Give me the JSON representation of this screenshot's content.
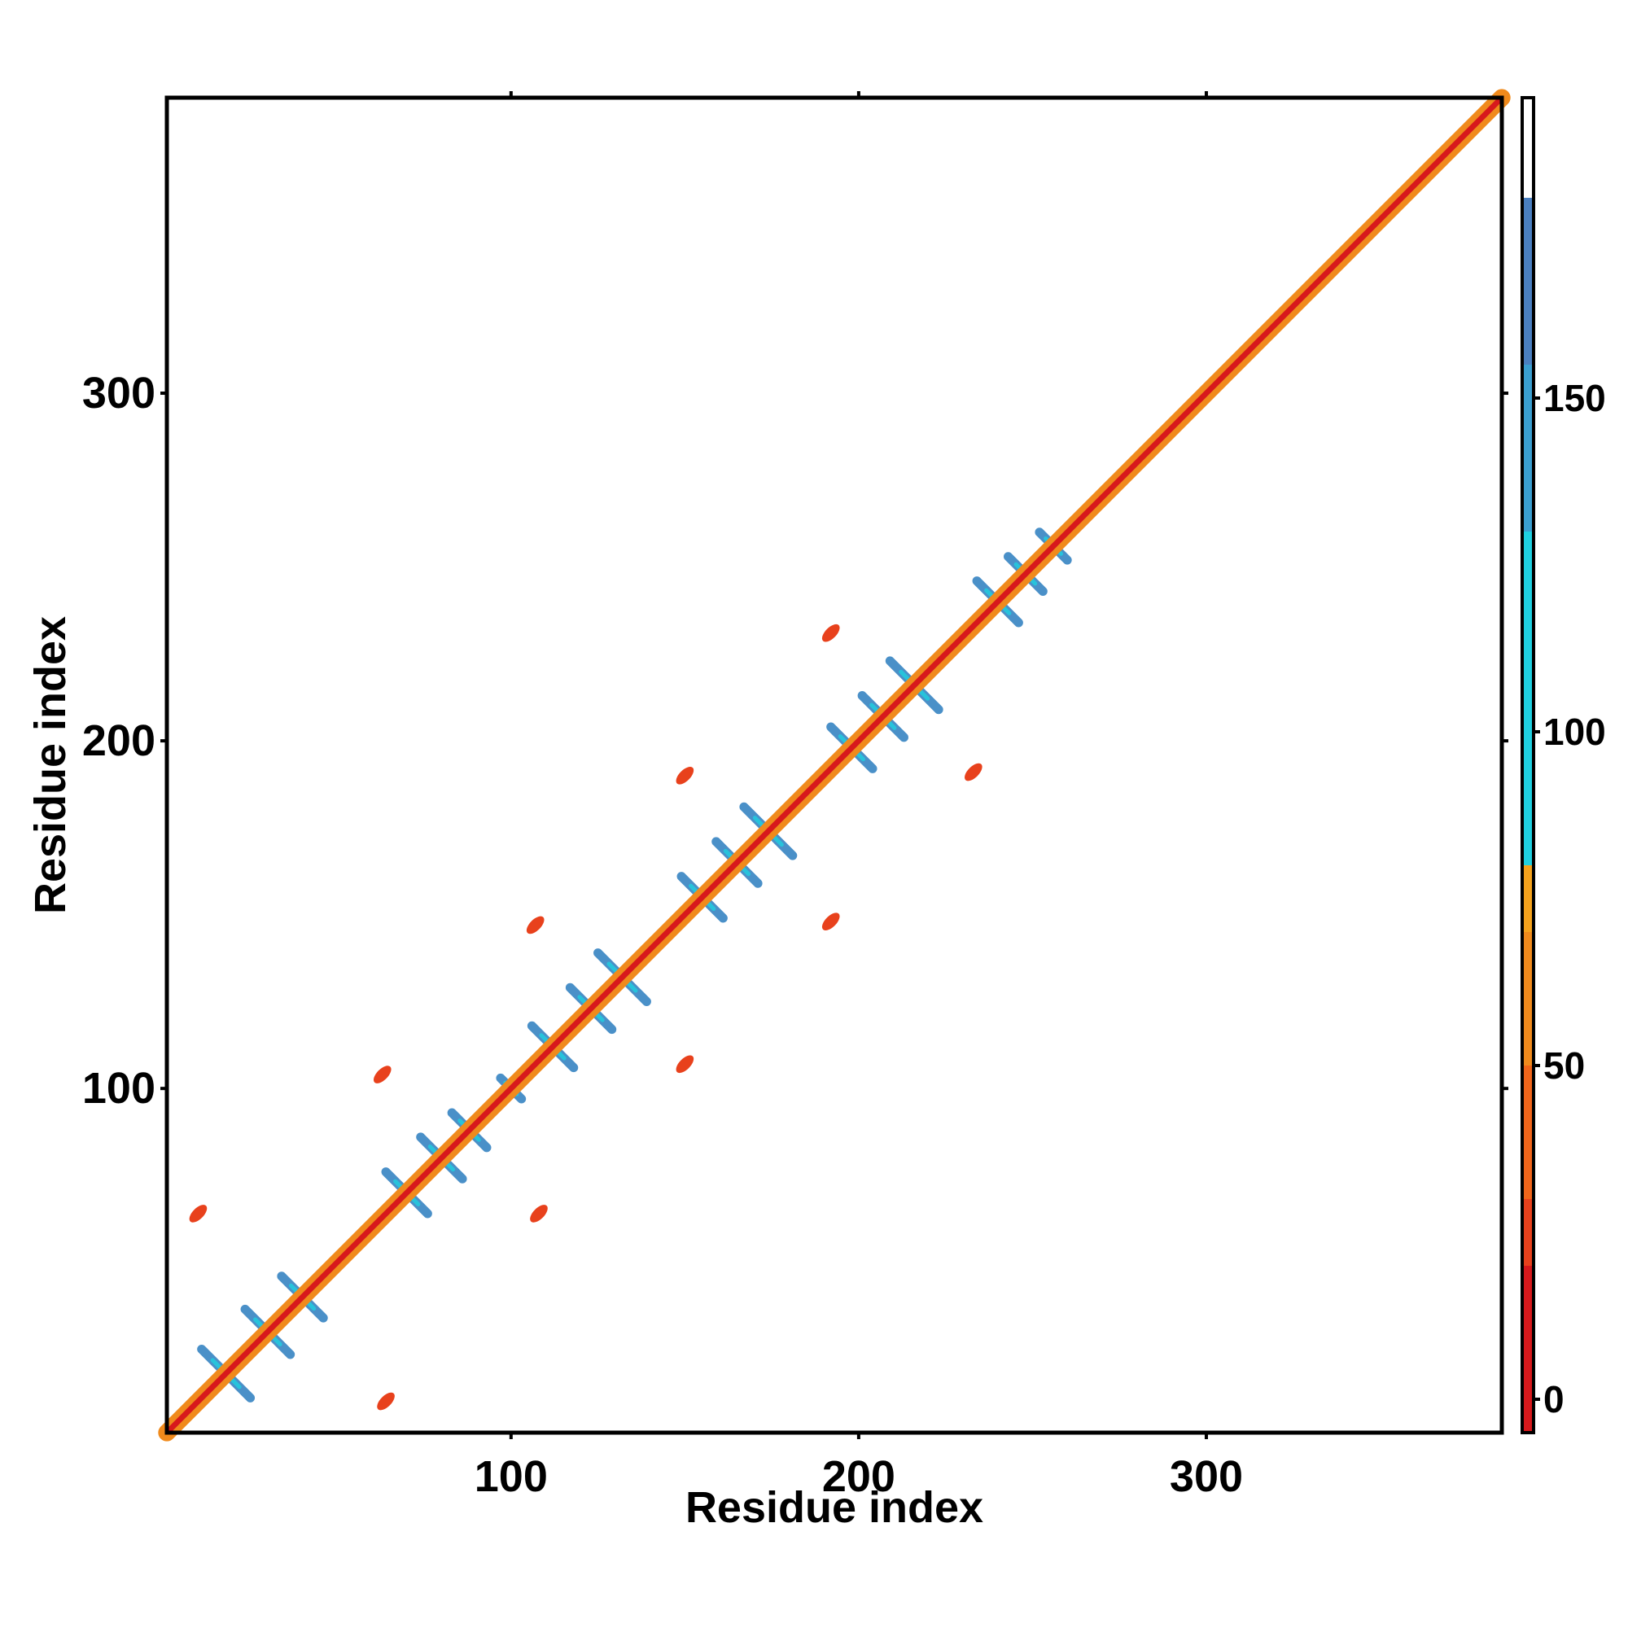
{
  "chart_data": {
    "type": "heatmap",
    "title": "",
    "xlabel": "Residue index",
    "ylabel": "Residue index",
    "xlim": [
      1,
      385
    ],
    "ylim": [
      1,
      385
    ],
    "x_ticks": [
      100,
      200,
      300
    ],
    "y_ticks": [
      100,
      200,
      300
    ],
    "grid": false,
    "colorbar": {
      "ticks": [
        0,
        50,
        100,
        150
      ],
      "range": [
        -5,
        195
      ],
      "bands": [
        {
          "from": -5,
          "to": 20,
          "color": "#d7191c"
        },
        {
          "from": 20,
          "to": 30,
          "color": "#e8411c"
        },
        {
          "from": 30,
          "to": 50,
          "color": "#f0651a"
        },
        {
          "from": 50,
          "to": 70,
          "color": "#f08a1c"
        },
        {
          "from": 70,
          "to": 80,
          "color": "#f5a21c"
        },
        {
          "from": 80,
          "to": 130,
          "color": "#1fd0e0"
        },
        {
          "from": 130,
          "to": 155,
          "color": "#3a9ed0"
        },
        {
          "from": 155,
          "to": 180,
          "color": "#4a7fc0"
        },
        {
          "from": 180,
          "to": 195,
          "color": "#ffffff"
        }
      ]
    },
    "diagonal": {
      "from": 1,
      "to": 385,
      "color": "#f08a1c",
      "core_color": "#d7191c"
    },
    "crosses": [
      {
        "x": 18,
        "y": 18,
        "len": 14,
        "color": "#4a90c8"
      },
      {
        "x": 30,
        "y": 30,
        "len": 13,
        "color": "#4a90c8"
      },
      {
        "x": 40,
        "y": 40,
        "len": 12,
        "color": "#4a90c8"
      },
      {
        "x": 70,
        "y": 70,
        "len": 12,
        "color": "#4a90c8"
      },
      {
        "x": 80,
        "y": 80,
        "len": 12,
        "color": "#4a90c8"
      },
      {
        "x": 88,
        "y": 88,
        "len": 10,
        "color": "#4a90c8"
      },
      {
        "x": 100,
        "y": 100,
        "len": 6,
        "color": "#4a90c8"
      },
      {
        "x": 112,
        "y": 112,
        "len": 12,
        "color": "#4a90c8"
      },
      {
        "x": 123,
        "y": 123,
        "len": 12,
        "color": "#4a90c8"
      },
      {
        "x": 132,
        "y": 132,
        "len": 14,
        "color": "#4a90c8"
      },
      {
        "x": 155,
        "y": 155,
        "len": 12,
        "color": "#4a90c8"
      },
      {
        "x": 165,
        "y": 165,
        "len": 12,
        "color": "#4a90c8"
      },
      {
        "x": 174,
        "y": 174,
        "len": 14,
        "color": "#4a90c8"
      },
      {
        "x": 198,
        "y": 198,
        "len": 12,
        "color": "#4a90c8"
      },
      {
        "x": 207,
        "y": 207,
        "len": 12,
        "color": "#4a90c8"
      },
      {
        "x": 216,
        "y": 216,
        "len": 14,
        "color": "#4a90c8"
      },
      {
        "x": 240,
        "y": 240,
        "len": 12,
        "color": "#4a90c8"
      },
      {
        "x": 248,
        "y": 248,
        "len": 10,
        "color": "#4a90c8"
      },
      {
        "x": 256,
        "y": 256,
        "len": 8,
        "color": "#4a90c8"
      }
    ],
    "off_diagonal": [
      {
        "x": 10,
        "y": 64,
        "color": "#e8411c"
      },
      {
        "x": 64,
        "y": 10,
        "color": "#e8411c"
      },
      {
        "x": 63,
        "y": 104,
        "color": "#e8411c"
      },
      {
        "x": 108,
        "y": 64,
        "color": "#e8411c"
      },
      {
        "x": 107,
        "y": 147,
        "color": "#e8411c"
      },
      {
        "x": 150,
        "y": 107,
        "color": "#e8411c"
      },
      {
        "x": 150,
        "y": 190,
        "color": "#e8411c"
      },
      {
        "x": 192,
        "y": 148,
        "color": "#e8411c"
      },
      {
        "x": 192,
        "y": 231,
        "color": "#e8411c"
      },
      {
        "x": 233,
        "y": 191,
        "color": "#e8411c"
      }
    ]
  }
}
